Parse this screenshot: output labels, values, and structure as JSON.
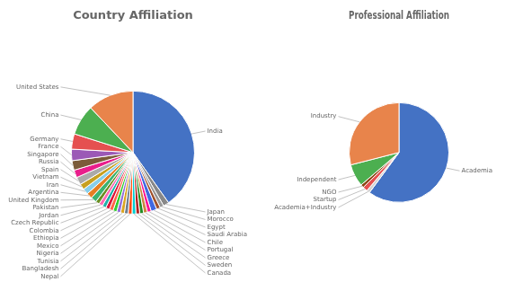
{
  "chart_data": [
    {
      "type": "pie",
      "title": "Country Affiliation",
      "categories": [
        "India",
        "Japan",
        "Morocco",
        "Egypt",
        "Saudi Arabia",
        "Chile",
        "Portugal",
        "Greece",
        "Sweden",
        "Canada",
        "Nepal",
        "Bangladesh",
        "Tunisia",
        "Nigeria",
        "Mexico",
        "Ethiopia",
        "Colombia",
        "Czech Republic",
        "Jordan",
        "Pakistan",
        "United Kingdom",
        "Argentina",
        "Iran",
        "Vietnam",
        "Spain",
        "Russia",
        "Singapore",
        "France",
        "Germany",
        "China",
        "United States"
      ],
      "values": [
        40,
        1.5,
        1,
        1,
        1.5,
        1,
        1,
        1,
        1,
        1,
        1,
        1,
        1,
        1,
        1,
        1,
        1,
        1,
        1,
        1,
        1.5,
        1.5,
        1.5,
        1.5,
        2,
        2,
        2.5,
        3,
        4,
        8,
        12
      ],
      "colors": [
        "#4472C4",
        "#888888",
        "#999999",
        "#A0522D",
        "#4169E1",
        "#FF1493",
        "#CD853F",
        "#228B22",
        "#B22222",
        "#00CED1",
        "#FF4500",
        "#708090",
        "#DAA520",
        "#9370DB",
        "#32CD32",
        "#FF6347",
        "#DC143C",
        "#20B2AA",
        "#FF69B4",
        "#6B8E23",
        "#3CB371",
        "#E67E22",
        "#87CEEB",
        "#C8A020",
        "#AAAAAA",
        "#E91E8C",
        "#7B5B3A",
        "#9B59B6",
        "#E55050",
        "#4CAF50",
        "#E8844B"
      ]
    },
    {
      "type": "pie",
      "title": "Professional Affiliation",
      "categories": [
        "Academia",
        "Academia+Industry",
        "Startup",
        "NGO",
        "Independent",
        "Industry"
      ],
      "values": [
        58,
        1,
        1.5,
        1,
        7,
        28
      ],
      "colors": [
        "#4472C4",
        "#D3D3D3",
        "#E55050",
        "#8B4513",
        "#4CAF50",
        "#E8844B"
      ]
    }
  ]
}
